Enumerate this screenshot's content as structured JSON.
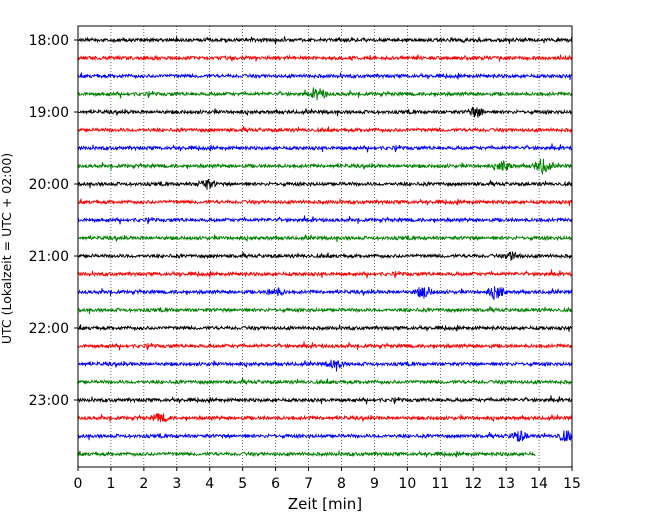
{
  "chart_data": {
    "type": "line",
    "title": "",
    "xlabel": "Zeit  [min]",
    "ylabel": "UTC (Lokalzeit = UTC + 02:00)",
    "xlim": [
      0,
      15
    ],
    "x_ticks": [
      "0",
      "1",
      "2",
      "3",
      "4",
      "5",
      "6",
      "7",
      "8",
      "9",
      "10",
      "11",
      "12",
      "13",
      "14",
      "15"
    ],
    "y_tick_labels": [
      "18:00",
      "19:00",
      "20:00",
      "21:00",
      "22:00",
      "23:00"
    ],
    "grid": "vertical dotted",
    "colors": [
      "#000000",
      "#ff0000",
      "#0000ff",
      "#008000"
    ],
    "series": [
      {
        "start": "18:00",
        "end_min": 15,
        "color": "#000000"
      },
      {
        "start": "18:15",
        "end_min": 15,
        "color": "#ff0000"
      },
      {
        "start": "18:30",
        "end_min": 15,
        "color": "#0000ff"
      },
      {
        "start": "18:45",
        "end_min": 15,
        "color": "#008000",
        "events": [
          {
            "t": 7.3,
            "amp": 1.6
          }
        ]
      },
      {
        "start": "19:00",
        "end_min": 15,
        "color": "#000000",
        "events": [
          {
            "t": 12.1,
            "amp": 1.4
          }
        ]
      },
      {
        "start": "19:15",
        "end_min": 15,
        "color": "#ff0000"
      },
      {
        "start": "19:30",
        "end_min": 15,
        "color": "#0000ff"
      },
      {
        "start": "19:45",
        "end_min": 15,
        "color": "#008000",
        "events": [
          {
            "t": 14.1,
            "amp": 2.2
          },
          {
            "t": 12.9,
            "amp": 1.3
          }
        ]
      },
      {
        "start": "20:00",
        "end_min": 15,
        "color": "#000000",
        "events": [
          {
            "t": 3.9,
            "amp": 1.4
          }
        ]
      },
      {
        "start": "20:15",
        "end_min": 15,
        "color": "#ff0000"
      },
      {
        "start": "20:30",
        "end_min": 15,
        "color": "#0000ff"
      },
      {
        "start": "20:45",
        "end_min": 15,
        "color": "#008000"
      },
      {
        "start": "21:00",
        "end_min": 15,
        "color": "#000000",
        "events": [
          {
            "t": 13.2,
            "amp": 1.3
          }
        ]
      },
      {
        "start": "21:15",
        "end_min": 15,
        "color": "#ff0000"
      },
      {
        "start": "21:30",
        "end_min": 15,
        "color": "#0000ff",
        "events": [
          {
            "t": 10.5,
            "amp": 1.7
          },
          {
            "t": 12.7,
            "amp": 2.0
          },
          {
            "t": 6.0,
            "amp": 1.2
          }
        ]
      },
      {
        "start": "21:45",
        "end_min": 15,
        "color": "#008000"
      },
      {
        "start": "22:00",
        "end_min": 15,
        "color": "#000000"
      },
      {
        "start": "22:15",
        "end_min": 15,
        "color": "#ff0000"
      },
      {
        "start": "22:30",
        "end_min": 15,
        "color": "#0000ff",
        "events": [
          {
            "t": 7.8,
            "amp": 1.3
          }
        ]
      },
      {
        "start": "22:45",
        "end_min": 15,
        "color": "#008000"
      },
      {
        "start": "23:00",
        "end_min": 15,
        "color": "#000000"
      },
      {
        "start": "23:15",
        "end_min": 15,
        "color": "#ff0000",
        "events": [
          {
            "t": 2.5,
            "amp": 1.3
          }
        ]
      },
      {
        "start": "23:30",
        "end_min": 15,
        "color": "#0000ff",
        "events": [
          {
            "t": 13.4,
            "amp": 1.6
          },
          {
            "t": 14.8,
            "amp": 1.5
          }
        ]
      },
      {
        "start": "23:45",
        "end_min": 13.9,
        "color": "#008000"
      }
    ]
  }
}
